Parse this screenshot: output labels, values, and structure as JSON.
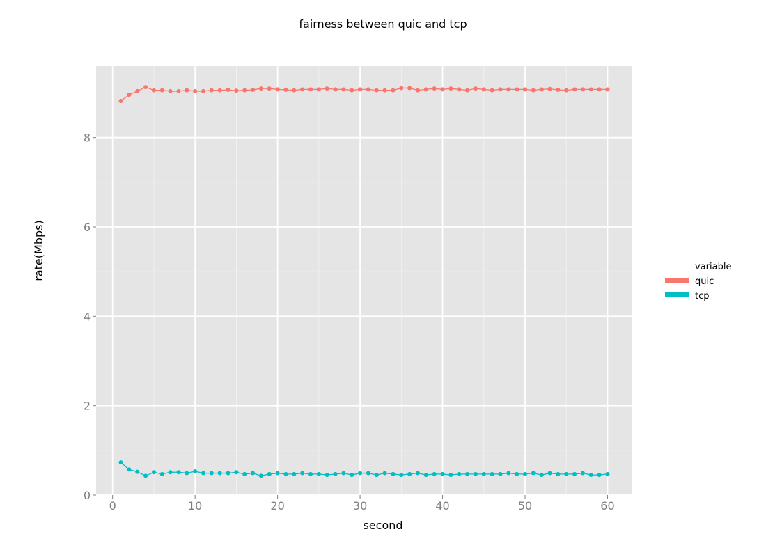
{
  "chart_data": {
    "type": "line",
    "title": "fairness between quic and tcp",
    "xlabel": "second",
    "ylabel": "rate(Mbps)",
    "xlim": [
      -2,
      63
    ],
    "ylim": [
      0,
      9.6
    ],
    "x_ticks": [
      0,
      10,
      20,
      30,
      40,
      50,
      60
    ],
    "y_ticks": [
      0,
      2,
      4,
      6,
      8
    ],
    "grid": true,
    "legend": {
      "title": "variable",
      "position": "right"
    },
    "x": [
      1,
      2,
      3,
      4,
      5,
      6,
      7,
      8,
      9,
      10,
      11,
      12,
      13,
      14,
      15,
      16,
      17,
      18,
      19,
      20,
      21,
      22,
      23,
      24,
      25,
      26,
      27,
      28,
      29,
      30,
      31,
      32,
      33,
      34,
      35,
      36,
      37,
      38,
      39,
      40,
      41,
      42,
      43,
      44,
      45,
      46,
      47,
      48,
      49,
      50,
      51,
      52,
      53,
      54,
      55,
      56,
      57,
      58,
      59,
      60
    ],
    "series": [
      {
        "name": "quic",
        "color": "#F8766D",
        "values": [
          8.82,
          8.96,
          9.04,
          9.13,
          9.06,
          9.06,
          9.04,
          9.04,
          9.06,
          9.04,
          9.04,
          9.06,
          9.06,
          9.07,
          9.05,
          9.06,
          9.07,
          9.1,
          9.1,
          9.08,
          9.07,
          9.06,
          9.08,
          9.08,
          9.08,
          9.1,
          9.08,
          9.08,
          9.06,
          9.08,
          9.08,
          9.06,
          9.06,
          9.06,
          9.11,
          9.11,
          9.06,
          9.08,
          9.1,
          9.08,
          9.1,
          9.08,
          9.06,
          9.1,
          9.08,
          9.06,
          9.08,
          9.08,
          9.08,
          9.08,
          9.06,
          9.08,
          9.09,
          9.07,
          9.06,
          9.08,
          9.08,
          9.08,
          9.08,
          9.08
        ]
      },
      {
        "name": "tcp",
        "color": "#00BFC4",
        "values": [
          0.73,
          0.57,
          0.52,
          0.43,
          0.51,
          0.47,
          0.51,
          0.51,
          0.49,
          0.53,
          0.49,
          0.49,
          0.49,
          0.49,
          0.51,
          0.47,
          0.49,
          0.43,
          0.47,
          0.49,
          0.47,
          0.47,
          0.49,
          0.47,
          0.47,
          0.45,
          0.47,
          0.49,
          0.45,
          0.49,
          0.49,
          0.45,
          0.49,
          0.47,
          0.45,
          0.47,
          0.49,
          0.45,
          0.47,
          0.47,
          0.45,
          0.47,
          0.47,
          0.47,
          0.47,
          0.47,
          0.47,
          0.49,
          0.47,
          0.47,
          0.49,
          0.45,
          0.49,
          0.47,
          0.47,
          0.47,
          0.49,
          0.45,
          0.45,
          0.47
        ]
      }
    ]
  }
}
